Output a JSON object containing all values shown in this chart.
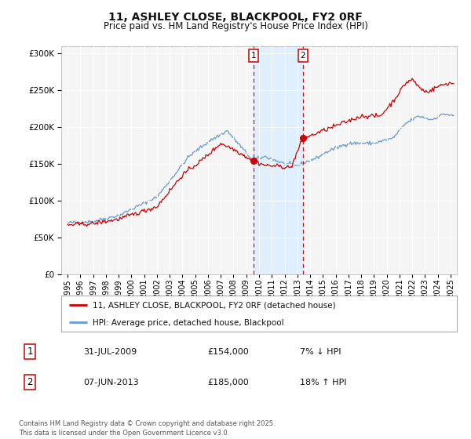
{
  "title": "11, ASHLEY CLOSE, BLACKPOOL, FY2 0RF",
  "subtitle": "Price paid vs. HM Land Registry's House Price Index (HPI)",
  "legend_line1": "11, ASHLEY CLOSE, BLACKPOOL, FY2 0RF (detached house)",
  "legend_line2": "HPI: Average price, detached house, Blackpool",
  "annotation1_label": "1",
  "annotation1_date": "31-JUL-2009",
  "annotation1_price": "£154,000",
  "annotation1_hpi": "7% ↓ HPI",
  "annotation2_label": "2",
  "annotation2_date": "07-JUN-2013",
  "annotation2_price": "£185,000",
  "annotation2_hpi": "18% ↑ HPI",
  "footer": "Contains HM Land Registry data © Crown copyright and database right 2025.\nThis data is licensed under the Open Government Licence v3.0.",
  "property_color": "#cc0000",
  "hpi_color": "#6699cc",
  "shading_color": "#ddeeff",
  "vline1_x": 2009.58,
  "vline2_x": 2013.44,
  "marker1_y": 154000,
  "marker2_y": 185000,
  "ylim": [
    0,
    310000
  ],
  "yticks": [
    0,
    50000,
    100000,
    150000,
    200000,
    250000,
    300000
  ],
  "xlim_start": 1994.5,
  "xlim_end": 2025.5,
  "background_color": "#ffffff",
  "plot_bg_color": "#f5f5f5",
  "grid_color": "#ffffff",
  "hpi_anchors_x": [
    1995.0,
    1997.0,
    1999.0,
    2002.0,
    2004.5,
    2006.0,
    2007.5,
    2009.0,
    2009.5,
    2010.5,
    2012.0,
    2013.0,
    2014.5,
    2015.5,
    2017.0,
    2019.0,
    2020.5,
    2021.5,
    2022.5,
    2023.5,
    2024.5,
    2025.3
  ],
  "hpi_anchors_y": [
    70000,
    72000,
    80000,
    105000,
    160000,
    180000,
    195000,
    165000,
    155000,
    160000,
    150000,
    148000,
    158000,
    168000,
    178000,
    178000,
    185000,
    205000,
    215000,
    210000,
    218000,
    215000
  ],
  "prop_anchors_x": [
    1995.0,
    1997.0,
    1999.0,
    2002.0,
    2004.0,
    2005.5,
    2006.5,
    2007.0,
    2008.0,
    2009.58,
    2010.5,
    2011.5,
    2012.5,
    2013.44,
    2014.0,
    2015.0,
    2016.5,
    2018.0,
    2019.5,
    2020.5,
    2021.5,
    2022.0,
    2022.5,
    2023.0,
    2023.5,
    2024.0,
    2024.5,
    2025.0,
    2025.3
  ],
  "prop_anchors_y": [
    67000,
    69000,
    75000,
    92000,
    135000,
    155000,
    170000,
    178000,
    170000,
    154000,
    148000,
    147000,
    145000,
    185000,
    188000,
    195000,
    205000,
    215000,
    215000,
    235000,
    260000,
    265000,
    255000,
    248000,
    250000,
    255000,
    258000,
    260000,
    258000
  ]
}
